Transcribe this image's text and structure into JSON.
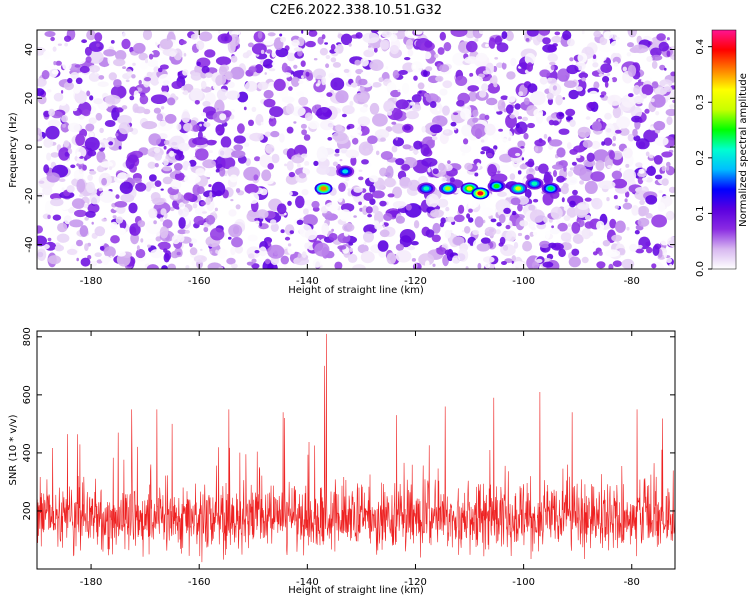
{
  "figure_title": "C2E6.2022.338.10.51.G32",
  "chart_data": [
    {
      "type": "heatmap",
      "title": "",
      "xlabel": "Height of straight line (km)",
      "ylabel": "Frequency (Hz)",
      "xlim": [
        -190,
        -72
      ],
      "ylim": [
        -50,
        48
      ],
      "x_ticks": [
        -180,
        -160,
        -140,
        -120,
        -100,
        -80
      ],
      "y_ticks": [
        -40,
        -20,
        0,
        20,
        40
      ],
      "colorbar": {
        "label": "Normalized spectral amplitude",
        "range": [
          0.0,
          0.43
        ],
        "ticks": [
          0.0,
          0.1,
          0.2,
          0.3,
          0.4
        ],
        "colormap": [
          "#ffffff",
          "#d8b8f0",
          "#8a2be2",
          "#5a00e0",
          "#0000ff",
          "#00bfff",
          "#00ffd0",
          "#00ff00",
          "#c8ff00",
          "#ffff00",
          "#ff8000",
          "#ff0000",
          "#ff1493"
        ]
      },
      "hotspots": [
        {
          "x": -137,
          "y": -17,
          "amp": 0.36
        },
        {
          "x": -133,
          "y": -10,
          "amp": 0.2
        },
        {
          "x": -118,
          "y": -17,
          "amp": 0.22
        },
        {
          "x": -114,
          "y": -17,
          "amp": 0.28
        },
        {
          "x": -110,
          "y": -17,
          "amp": 0.33
        },
        {
          "x": -108,
          "y": -19,
          "amp": 0.4
        },
        {
          "x": -105,
          "y": -16,
          "amp": 0.25
        },
        {
          "x": -101,
          "y": -17,
          "amp": 0.3
        },
        {
          "x": -98,
          "y": -15,
          "amp": 0.22
        },
        {
          "x": -95,
          "y": -17,
          "amp": 0.24
        }
      ]
    },
    {
      "type": "line",
      "title": "",
      "xlabel": "Height of straight line (km)",
      "ylabel": "SNR (10 * v/v)",
      "xlim": [
        -190,
        -72
      ],
      "ylim": [
        0,
        820
      ],
      "x_ticks": [
        -180,
        -160,
        -140,
        -120,
        -100,
        -80
      ],
      "y_ticks": [
        200,
        400,
        600,
        800
      ],
      "line_color": "#ee2222",
      "baseline_mean": 175,
      "noise_amplitude": 110,
      "n_samples": 1800,
      "peaks": [
        {
          "x": -136.5,
          "y": 810
        },
        {
          "x": -136.8,
          "y": 700
        },
        {
          "x": -172.5,
          "y": 550
        },
        {
          "x": -167.8,
          "y": 550
        },
        {
          "x": -154.5,
          "y": 550
        },
        {
          "x": -144.5,
          "y": 540
        },
        {
          "x": -114.5,
          "y": 560
        },
        {
          "x": -105.5,
          "y": 590
        },
        {
          "x": -97,
          "y": 610
        },
        {
          "x": -91,
          "y": 540
        },
        {
          "x": -79,
          "y": 550
        },
        {
          "x": -123.5,
          "y": 530
        },
        {
          "x": -165,
          "y": 500
        },
        {
          "x": -175,
          "y": 470
        }
      ]
    }
  ]
}
